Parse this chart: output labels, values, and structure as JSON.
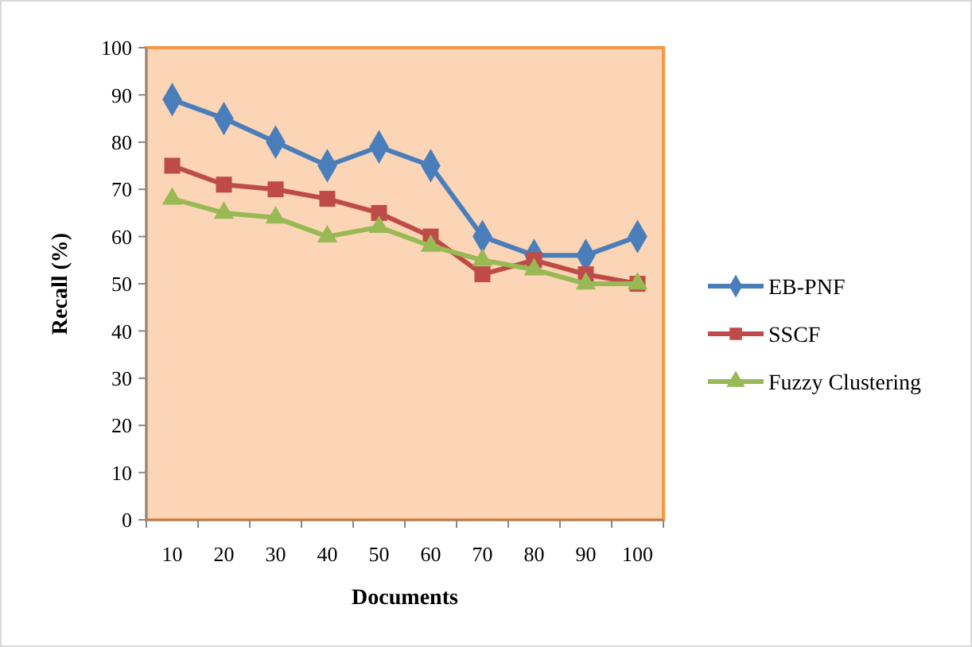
{
  "chart_data": {
    "type": "line",
    "xlabel": "Documents",
    "ylabel": "Recall (%)",
    "categories": [
      "10",
      "20",
      "30",
      "40",
      "50",
      "60",
      "70",
      "80",
      "90",
      "100"
    ],
    "series": [
      {
        "name": "EB-PNF",
        "color": "#4a7ebb",
        "marker": "diamond",
        "values": [
          89,
          85,
          80,
          75,
          79,
          75,
          60,
          56,
          56,
          60
        ]
      },
      {
        "name": "SSCF",
        "color": "#be4b48",
        "marker": "square",
        "values": [
          75,
          71,
          70,
          68,
          65,
          60,
          52,
          55,
          52,
          50
        ]
      },
      {
        "name": "Fuzzy Clustering",
        "color": "#98b954",
        "marker": "triangle",
        "values": [
          68,
          65,
          64,
          60,
          62,
          58,
          55,
          53,
          50,
          50
        ]
      }
    ],
    "ylim": [
      0,
      100
    ],
    "yticks": [
      0,
      10,
      20,
      30,
      40,
      50,
      60,
      70,
      80,
      90,
      100
    ],
    "grid": false,
    "legend": "right",
    "line_style": "solid"
  }
}
